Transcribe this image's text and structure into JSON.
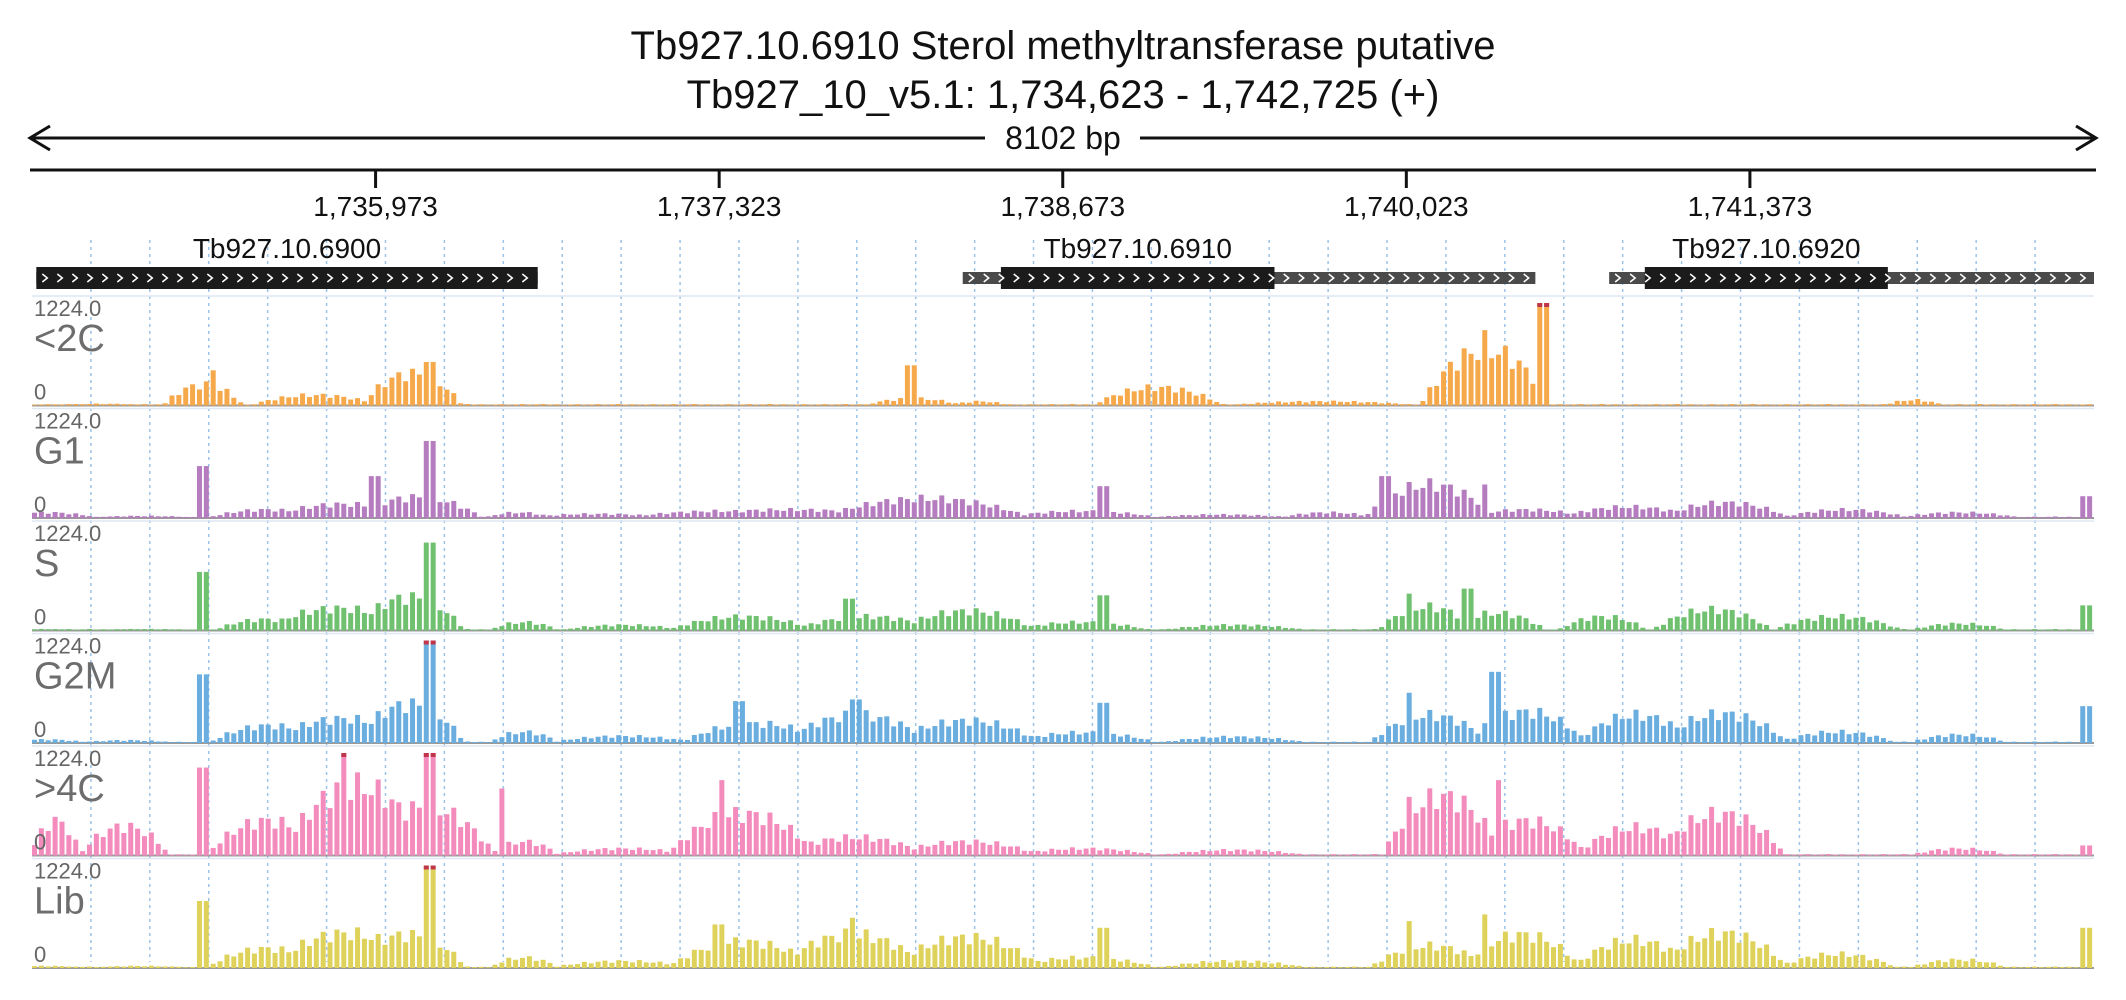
{
  "title_line1": "Tb927.10.6910  Sterol methyltransferase  putative",
  "title_line2": "Tb927_10_v5.1: 1,734,623 - 1,742,725 (+)",
  "span_label": "8102 bp",
  "chart_data": {
    "type": "area",
    "region": {
      "chrom": "Tb927_10_v5.1",
      "start": 1734623,
      "end": 1742725,
      "strand": "+"
    },
    "ticks": [
      1735973,
      1737323,
      1738673,
      1740023,
      1741373
    ],
    "tick_labels": [
      "1,735,973",
      "1,737,323",
      "1,738,673",
      "1,740,023",
      "1,741,373"
    ],
    "genes": [
      {
        "name": "Tb927.10.6900",
        "start": 1734640,
        "end": 1736610,
        "cds_start": 1734640,
        "cds_end": 1736610
      },
      {
        "name": "Tb927.10.6910",
        "start": 1738280,
        "end": 1740530,
        "cds_start": 1738430,
        "cds_end": 1739505
      },
      {
        "name": "Tb927.10.6920",
        "start": 1740820,
        "end": 1742725,
        "cds_start": 1740960,
        "cds_end": 1741915
      }
    ],
    "ylim": [
      0,
      1224.0
    ],
    "ymax_label": "1224.0",
    "yzero_label": "0",
    "tracks": [
      {
        "name": "<2C",
        "color": "#f6a94b",
        "peaks": [
          [
            1734720,
            200,
            15
          ],
          [
            1734900,
            200,
            25
          ],
          [
            1735300,
            160,
            300
          ],
          [
            1735740,
            260,
            150
          ],
          [
            1736120,
            200,
            460
          ],
          [
            1738090,
            200,
            100
          ],
          [
            1738350,
            120,
            60
          ],
          [
            1739050,
            260,
            260
          ],
          [
            1739700,
            400,
            60
          ],
          [
            1740340,
            260,
            800
          ],
          [
            1741990,
            80,
            50
          ],
          [
            1742020,
            120,
            80
          ]
        ],
        "bars": [
          [
            1735340,
            420
          ],
          [
            1736190,
            520
          ],
          [
            1738080,
            480
          ],
          [
            1740560,
            1224
          ],
          [
            1740340,
            900
          ]
        ]
      },
      {
        "name": "G1",
        "color": "#b57cbf",
        "peaks": [
          [
            1734680,
            220,
            80
          ],
          [
            1735060,
            240,
            30
          ],
          [
            1735550,
            240,
            120
          ],
          [
            1735850,
            300,
            200
          ],
          [
            1736140,
            260,
            300
          ],
          [
            1736540,
            140,
            80
          ],
          [
            1736850,
            300,
            60
          ],
          [
            1737340,
            400,
            100
          ],
          [
            1737600,
            500,
            120
          ],
          [
            1738140,
            420,
            280
          ],
          [
            1738750,
            320,
            100
          ],
          [
            1739300,
            300,
            50
          ],
          [
            1739720,
            200,
            80
          ],
          [
            1740120,
            260,
            480
          ],
          [
            1740500,
            260,
            120
          ],
          [
            1740900,
            280,
            160
          ],
          [
            1741280,
            260,
            220
          ],
          [
            1741750,
            260,
            120
          ],
          [
            1742200,
            250,
            80
          ]
        ],
        "bars": [
          [
            1735300,
            620
          ],
          [
            1736190,
            920
          ],
          [
            1735970,
            500
          ],
          [
            1738830,
            380
          ],
          [
            1739950,
            500
          ],
          [
            1740330,
            400
          ],
          [
            1742700,
            260
          ]
        ]
      },
      {
        "name": "S",
        "color": "#6fc06f",
        "peaks": [
          [
            1734680,
            160,
            20
          ],
          [
            1735050,
            240,
            20
          ],
          [
            1735540,
            200,
            160
          ],
          [
            1735830,
            300,
            320
          ],
          [
            1736110,
            220,
            480
          ],
          [
            1736560,
            140,
            120
          ],
          [
            1736950,
            260,
            80
          ],
          [
            1737420,
            300,
            200
          ],
          [
            1737910,
            300,
            200
          ],
          [
            1738300,
            280,
            280
          ],
          [
            1738750,
            280,
            120
          ],
          [
            1739350,
            300,
            80
          ],
          [
            1740110,
            200,
            340
          ],
          [
            1740380,
            200,
            250
          ],
          [
            1740800,
            180,
            200
          ],
          [
            1741230,
            240,
            300
          ],
          [
            1741720,
            260,
            200
          ],
          [
            1742200,
            200,
            100
          ]
        ],
        "bars": [
          [
            1735300,
            700
          ],
          [
            1736190,
            1050
          ],
          [
            1737840,
            380
          ],
          [
            1738840,
            420
          ],
          [
            1740040,
            440
          ],
          [
            1740270,
            500
          ],
          [
            1742700,
            300
          ]
        ]
      },
      {
        "name": "G2M",
        "color": "#6aaee0",
        "peaks": [
          [
            1734680,
            180,
            50
          ],
          [
            1735000,
            200,
            40
          ],
          [
            1735560,
            240,
            250
          ],
          [
            1735850,
            300,
            350
          ],
          [
            1736110,
            220,
            560
          ],
          [
            1736560,
            140,
            160
          ],
          [
            1736950,
            300,
            100
          ],
          [
            1737470,
            300,
            280
          ],
          [
            1737870,
            300,
            400
          ],
          [
            1738300,
            300,
            320
          ],
          [
            1738760,
            300,
            150
          ],
          [
            1739350,
            300,
            90
          ],
          [
            1740120,
            240,
            400
          ],
          [
            1740500,
            240,
            450
          ],
          [
            1740930,
            240,
            400
          ],
          [
            1741270,
            260,
            420
          ],
          [
            1741720,
            240,
            160
          ],
          [
            1742200,
            200,
            120
          ]
        ],
        "bars": [
          [
            1735300,
            820
          ],
          [
            1736190,
            1224
          ],
          [
            1737400,
            500
          ],
          [
            1737870,
            520
          ],
          [
            1738830,
            480
          ],
          [
            1740040,
            600
          ],
          [
            1740370,
            850
          ],
          [
            1742700,
            440
          ]
        ]
      },
      {
        "name": ">4C",
        "color": "#f38bbd",
        "peaks": [
          [
            1734720,
            100,
            500
          ],
          [
            1734990,
            180,
            420
          ],
          [
            1735550,
            240,
            500
          ],
          [
            1735900,
            300,
            1000
          ],
          [
            1736170,
            280,
            700
          ],
          [
            1736560,
            140,
            200
          ],
          [
            1736950,
            300,
            100
          ],
          [
            1737420,
            300,
            600
          ],
          [
            1737860,
            300,
            260
          ],
          [
            1738300,
            300,
            200
          ],
          [
            1738760,
            300,
            100
          ],
          [
            1739350,
            300,
            80
          ],
          [
            1740170,
            240,
            850
          ],
          [
            1740500,
            240,
            500
          ],
          [
            1740930,
            240,
            400
          ],
          [
            1741260,
            260,
            600
          ],
          [
            1742200,
            200,
            100
          ]
        ],
        "bars": [
          [
            1735300,
            1050
          ],
          [
            1735850,
            1224
          ],
          [
            1736190,
            1224
          ],
          [
            1736470,
            800
          ],
          [
            1737340,
            900
          ],
          [
            1740040,
            700
          ],
          [
            1740390,
            900
          ],
          [
            1742700,
            120
          ]
        ]
      },
      {
        "name": "Lib",
        "color": "#ded25a",
        "peaks": [
          [
            1734680,
            180,
            30
          ],
          [
            1735050,
            220,
            30
          ],
          [
            1735550,
            240,
            280
          ],
          [
            1735860,
            300,
            500
          ],
          [
            1736100,
            240,
            480
          ],
          [
            1736560,
            140,
            150
          ],
          [
            1736950,
            300,
            100
          ],
          [
            1737420,
            300,
            380
          ],
          [
            1737850,
            300,
            480
          ],
          [
            1738300,
            300,
            440
          ],
          [
            1738760,
            300,
            150
          ],
          [
            1739350,
            300,
            100
          ],
          [
            1740120,
            240,
            320
          ],
          [
            1740480,
            240,
            480
          ],
          [
            1740920,
            240,
            400
          ],
          [
            1741270,
            260,
            500
          ],
          [
            1741720,
            240,
            200
          ],
          [
            1742200,
            200,
            120
          ]
        ],
        "bars": [
          [
            1735300,
            800
          ],
          [
            1736190,
            1224
          ],
          [
            1737320,
            520
          ],
          [
            1737850,
            600
          ],
          [
            1738830,
            480
          ],
          [
            1740040,
            560
          ],
          [
            1740330,
            640
          ],
          [
            1742700,
            480
          ]
        ]
      }
    ]
  }
}
